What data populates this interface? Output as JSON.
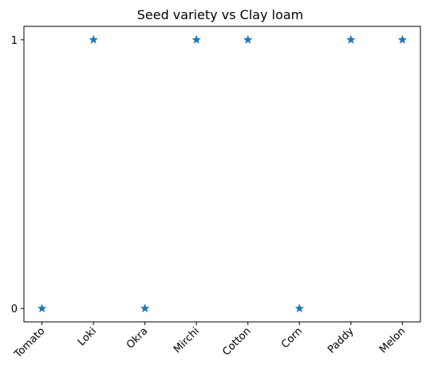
{
  "chart_data": {
    "type": "scatter",
    "title": "Seed variety vs Clay loam",
    "xlabel": "",
    "ylabel": "",
    "categories": [
      "Tomato",
      "Loki",
      "Okra",
      "Mirchi",
      "Cotton",
      "Corn",
      "Paddy",
      "Melon"
    ],
    "values": [
      0,
      1,
      0,
      1,
      1,
      0,
      1,
      1
    ],
    "y_ticks": [
      0,
      1
    ],
    "ylim": [
      -0.05,
      1.05
    ],
    "marker": "star",
    "marker_color": "#1f77b4",
    "x_tick_rotation_deg": 45,
    "grid": false,
    "legend": "none"
  }
}
